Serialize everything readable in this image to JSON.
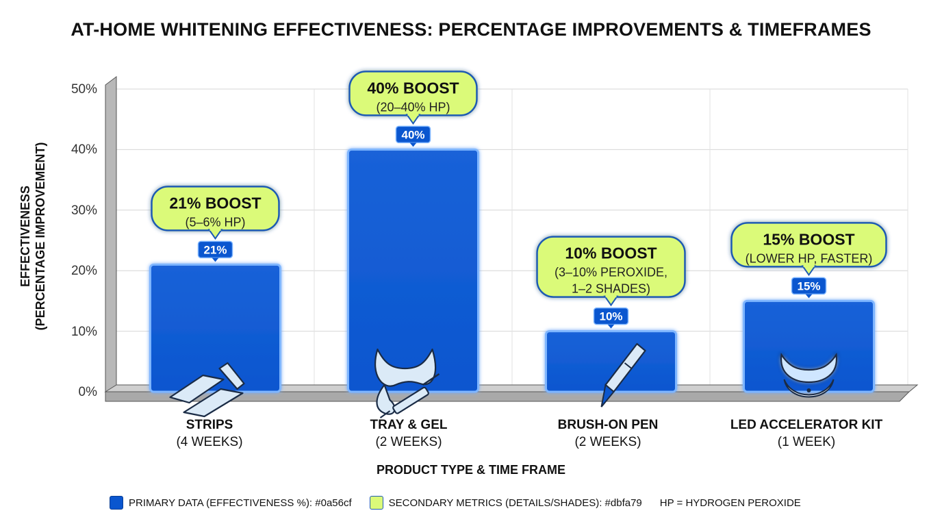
{
  "chart_data": {
    "type": "bar",
    "title": "AT-HOME WHITENING EFFECTIVENESS: PERCENTAGE IMPROVEMENTS & TIMEFRAMES",
    "ylabel_line1": "EFFECTIVENESS",
    "ylabel_line2": "(PERCENTAGE IMPROVEMENT)",
    "xlabel": "PRODUCT TYPE & TIME FRAME",
    "ylim": [
      0,
      50
    ],
    "yticks": [
      {
        "value": 0,
        "label": "0%"
      },
      {
        "value": 10,
        "label": "10%"
      },
      {
        "value": 20,
        "label": "20%"
      },
      {
        "value": 30,
        "label": "30%"
      },
      {
        "value": 40,
        "label": "40%"
      },
      {
        "value": 50,
        "label": "50%"
      }
    ],
    "categories": [
      {
        "name": "STRIPS",
        "timeframe": "(4 WEEKS)",
        "value": 21,
        "value_label": "21%",
        "callout_title": "21% BOOST",
        "callout_lines": [
          "(5–6% HP)"
        ],
        "icon": "strips-icon"
      },
      {
        "name": "TRAY & GEL",
        "timeframe": "(2 WEEKS)",
        "value": 40,
        "value_label": "40%",
        "callout_title": "40% BOOST",
        "callout_lines": [
          "(20–40% HP)"
        ],
        "icon": "tray-syringe-icon"
      },
      {
        "name": "BRUSH-ON PEN",
        "timeframe": "(2 WEEKS)",
        "value": 10,
        "value_label": "10%",
        "callout_title": "10% BOOST",
        "callout_lines": [
          "(3–10% PEROXIDE,",
          "1–2 SHADES)"
        ],
        "icon": "pen-icon"
      },
      {
        "name": "LED ACCELERATOR KIT",
        "timeframe": "(1 WEEK)",
        "value": 15,
        "value_label": "15%",
        "callout_title": "15% BOOST",
        "callout_lines": [
          "(LOWER HP, FASTER)"
        ],
        "icon": "led-mouthpiece-icon"
      }
    ],
    "colors": {
      "primary": "#0a56cf",
      "secondary": "#dbfa79",
      "grid": "#d6d6d6",
      "axis": "#8a8a8a"
    }
  },
  "legend": {
    "primary_label": "PRIMARY DATA (EFFECTIVENESS %): #0a56cf",
    "secondary_label": "SECONDARY METRICS (DETAILS/SHADES): #dbfa79",
    "note": "HP = HYDROGEN PEROXIDE"
  }
}
